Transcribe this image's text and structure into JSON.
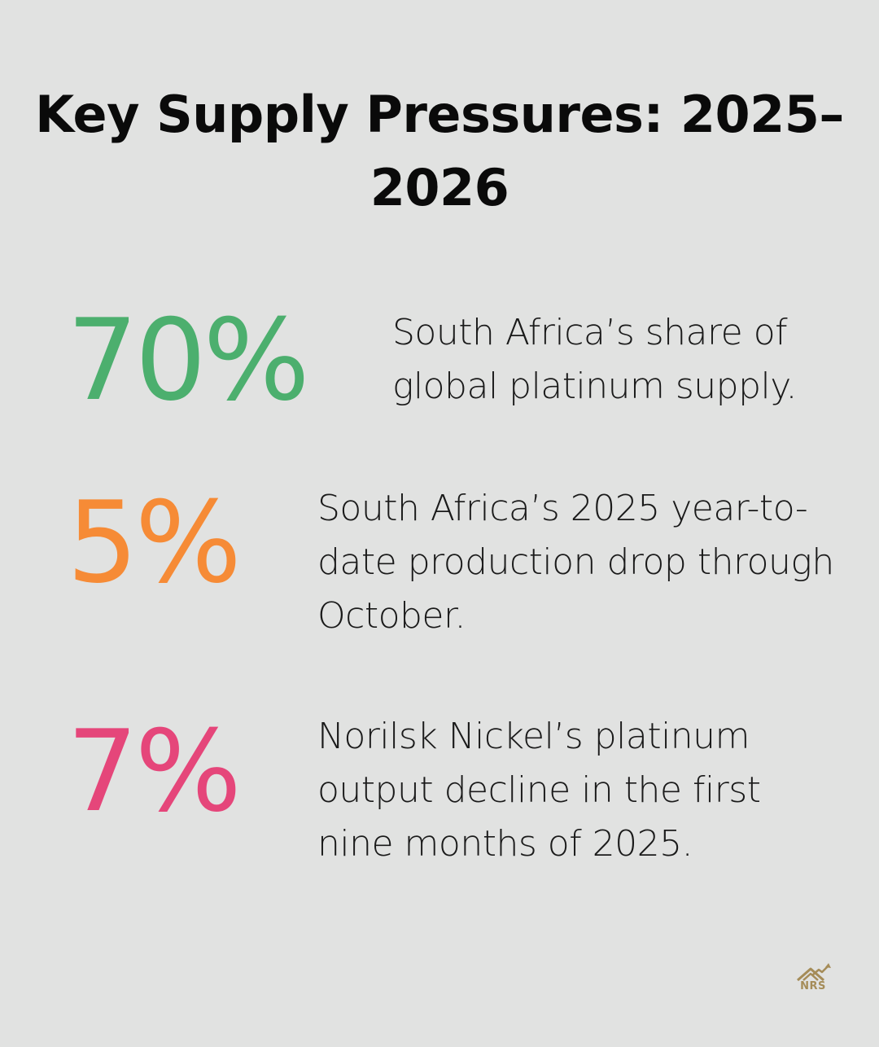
{
  "title": "Key Supply Pressures: 2025–2026",
  "stats": [
    {
      "value": "70%",
      "description": "South Africa’s share of global platinum supply.",
      "color": "#4caf6e"
    },
    {
      "value": "5%",
      "description": "South Africa’s 2025 year-to-date production drop through October.",
      "color": "#f68b36"
    },
    {
      "value": "7%",
      "description": "Norilsk Nickel’s platinum output decline in the first nine months of 2025.",
      "color": "#e5467a"
    }
  ],
  "logo": {
    "text": "NRS",
    "icon": "house-chart-icon",
    "color": "#a58c58"
  }
}
